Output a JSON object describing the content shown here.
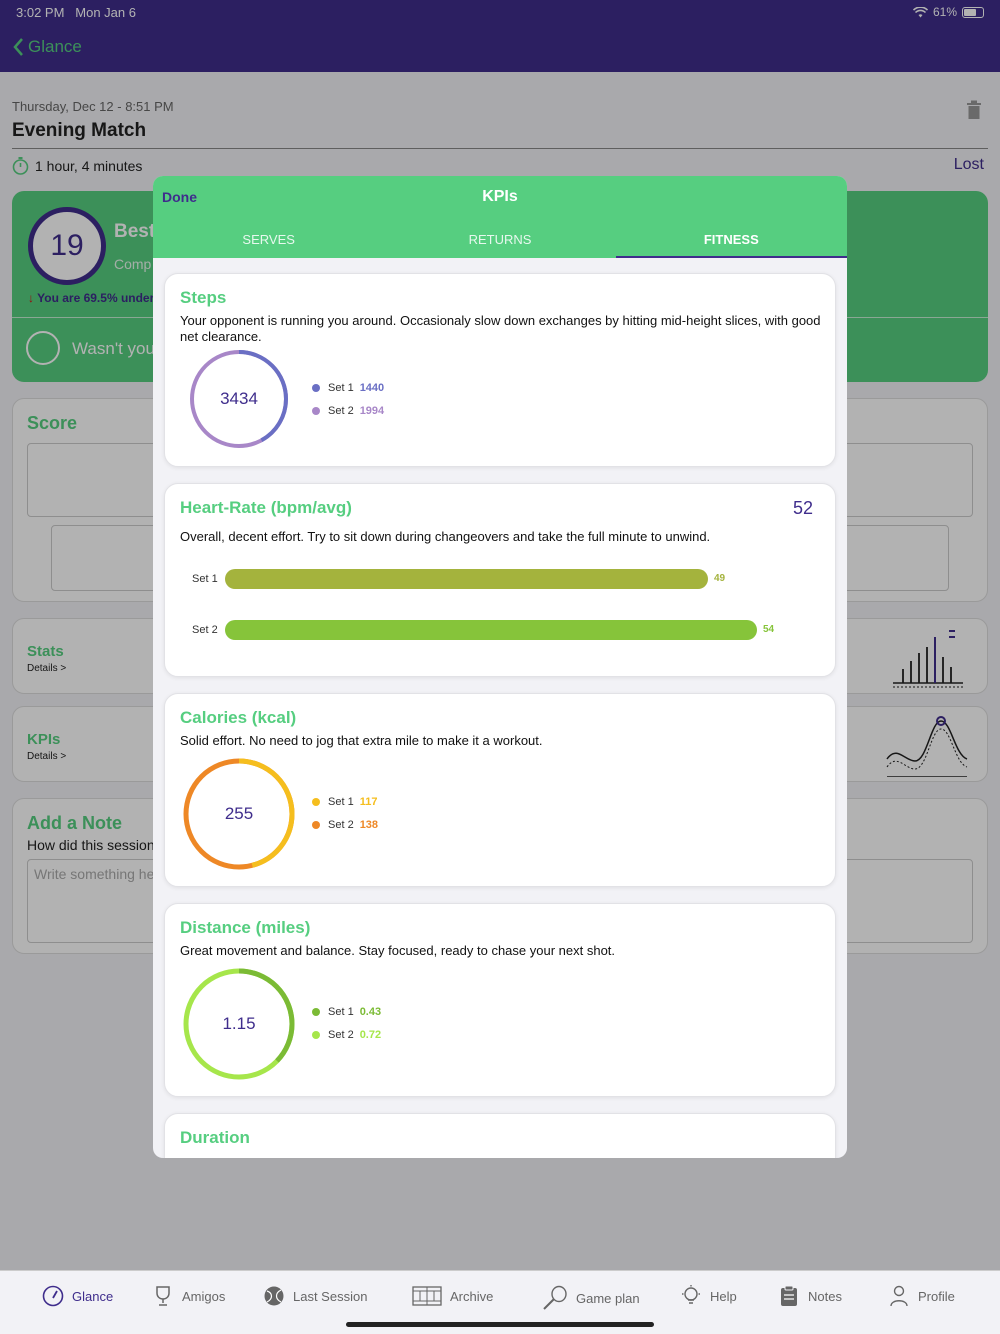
{
  "status_bar": {
    "time": "3:02 PM",
    "date": "Mon Jan 6",
    "battery": "61%"
  },
  "nav": {
    "back_label": "Glance"
  },
  "session": {
    "date": "Thursday, Dec 12 - 8:51 PM",
    "title": "Evening Match",
    "duration": "1 hour, 4 minutes",
    "result": "Lost",
    "score": "19",
    "best_label": "Best",
    "compare_label": "Comp",
    "under_text": "You are 69.5% under",
    "wasnt_text": "Wasn't you"
  },
  "cards": {
    "score_title": "Score",
    "stats_title": "Stats",
    "stats_link": "Details >",
    "kpis_title": "KPIs",
    "kpis_link": "Details >",
    "note_title": "Add a Note",
    "note_question": "How did this session",
    "note_placeholder": "Write something he"
  },
  "modal": {
    "done_label": "Done",
    "title": "KPIs",
    "tabs": [
      {
        "label": "SERVES",
        "active": false
      },
      {
        "label": "RETURNS",
        "active": false
      },
      {
        "label": "FITNESS",
        "active": true
      }
    ]
  },
  "kpis": {
    "steps": {
      "title": "Steps",
      "desc": "Your opponent is running you around. Occasionaly slow down exchanges by hitting mid-height slices, with good net clearance.",
      "total": "3434",
      "sets": [
        {
          "label": "Set 1",
          "value": "1440",
          "color": "#6a6fc4"
        },
        {
          "label": "Set 2",
          "value": "1994",
          "color": "#a887c8"
        }
      ]
    },
    "heart_rate": {
      "title": "Heart-Rate (bpm/avg)",
      "value": "52",
      "desc": "Overall, decent effort. Try to sit down during changeovers and take the full minute to unwind.",
      "sets": [
        {
          "label": "Set 1",
          "value": "49",
          "fraction": 0.862,
          "color": "#a4b33d"
        },
        {
          "label": "Set 2",
          "value": "54",
          "fraction": 0.95,
          "color": "#86c43a"
        }
      ]
    },
    "calories": {
      "title": "Calories (kcal)",
      "desc": "Solid effort. No need to jog that extra mile to make it a workout.",
      "total": "255",
      "sets": [
        {
          "label": "Set 1",
          "value": "117",
          "color": "#f5be1e"
        },
        {
          "label": "Set 2",
          "value": "138",
          "color": "#ee8826"
        }
      ]
    },
    "distance": {
      "title": "Distance (miles)",
      "desc": "Great movement and balance. Stay focused, ready to chase your next shot.",
      "total": "1.15",
      "sets": [
        {
          "label": "Set 1",
          "value": "0.43",
          "color": "#7bbb35"
        },
        {
          "label": "Set 2",
          "value": "0.72",
          "color": "#a6e64b"
        }
      ]
    },
    "duration": {
      "title": "Duration"
    }
  },
  "tabbar": [
    {
      "label": "Glance",
      "icon": "gauge-icon",
      "active": true
    },
    {
      "label": "Amigos",
      "icon": "trophy-icon",
      "active": false
    },
    {
      "label": "Last Session",
      "icon": "tennis-ball-icon",
      "active": false
    },
    {
      "label": "Archive",
      "icon": "court-icon",
      "active": false
    },
    {
      "label": "Game plan",
      "icon": "racket-icon",
      "active": false
    },
    {
      "label": "Help",
      "icon": "bulb-icon",
      "active": false
    },
    {
      "label": "Notes",
      "icon": "clipboard-icon",
      "active": false
    },
    {
      "label": "Profile",
      "icon": "person-icon",
      "active": false
    }
  ],
  "colors": {
    "brand_purple": "#3f2d8c",
    "brand_green": "#56ce80"
  }
}
